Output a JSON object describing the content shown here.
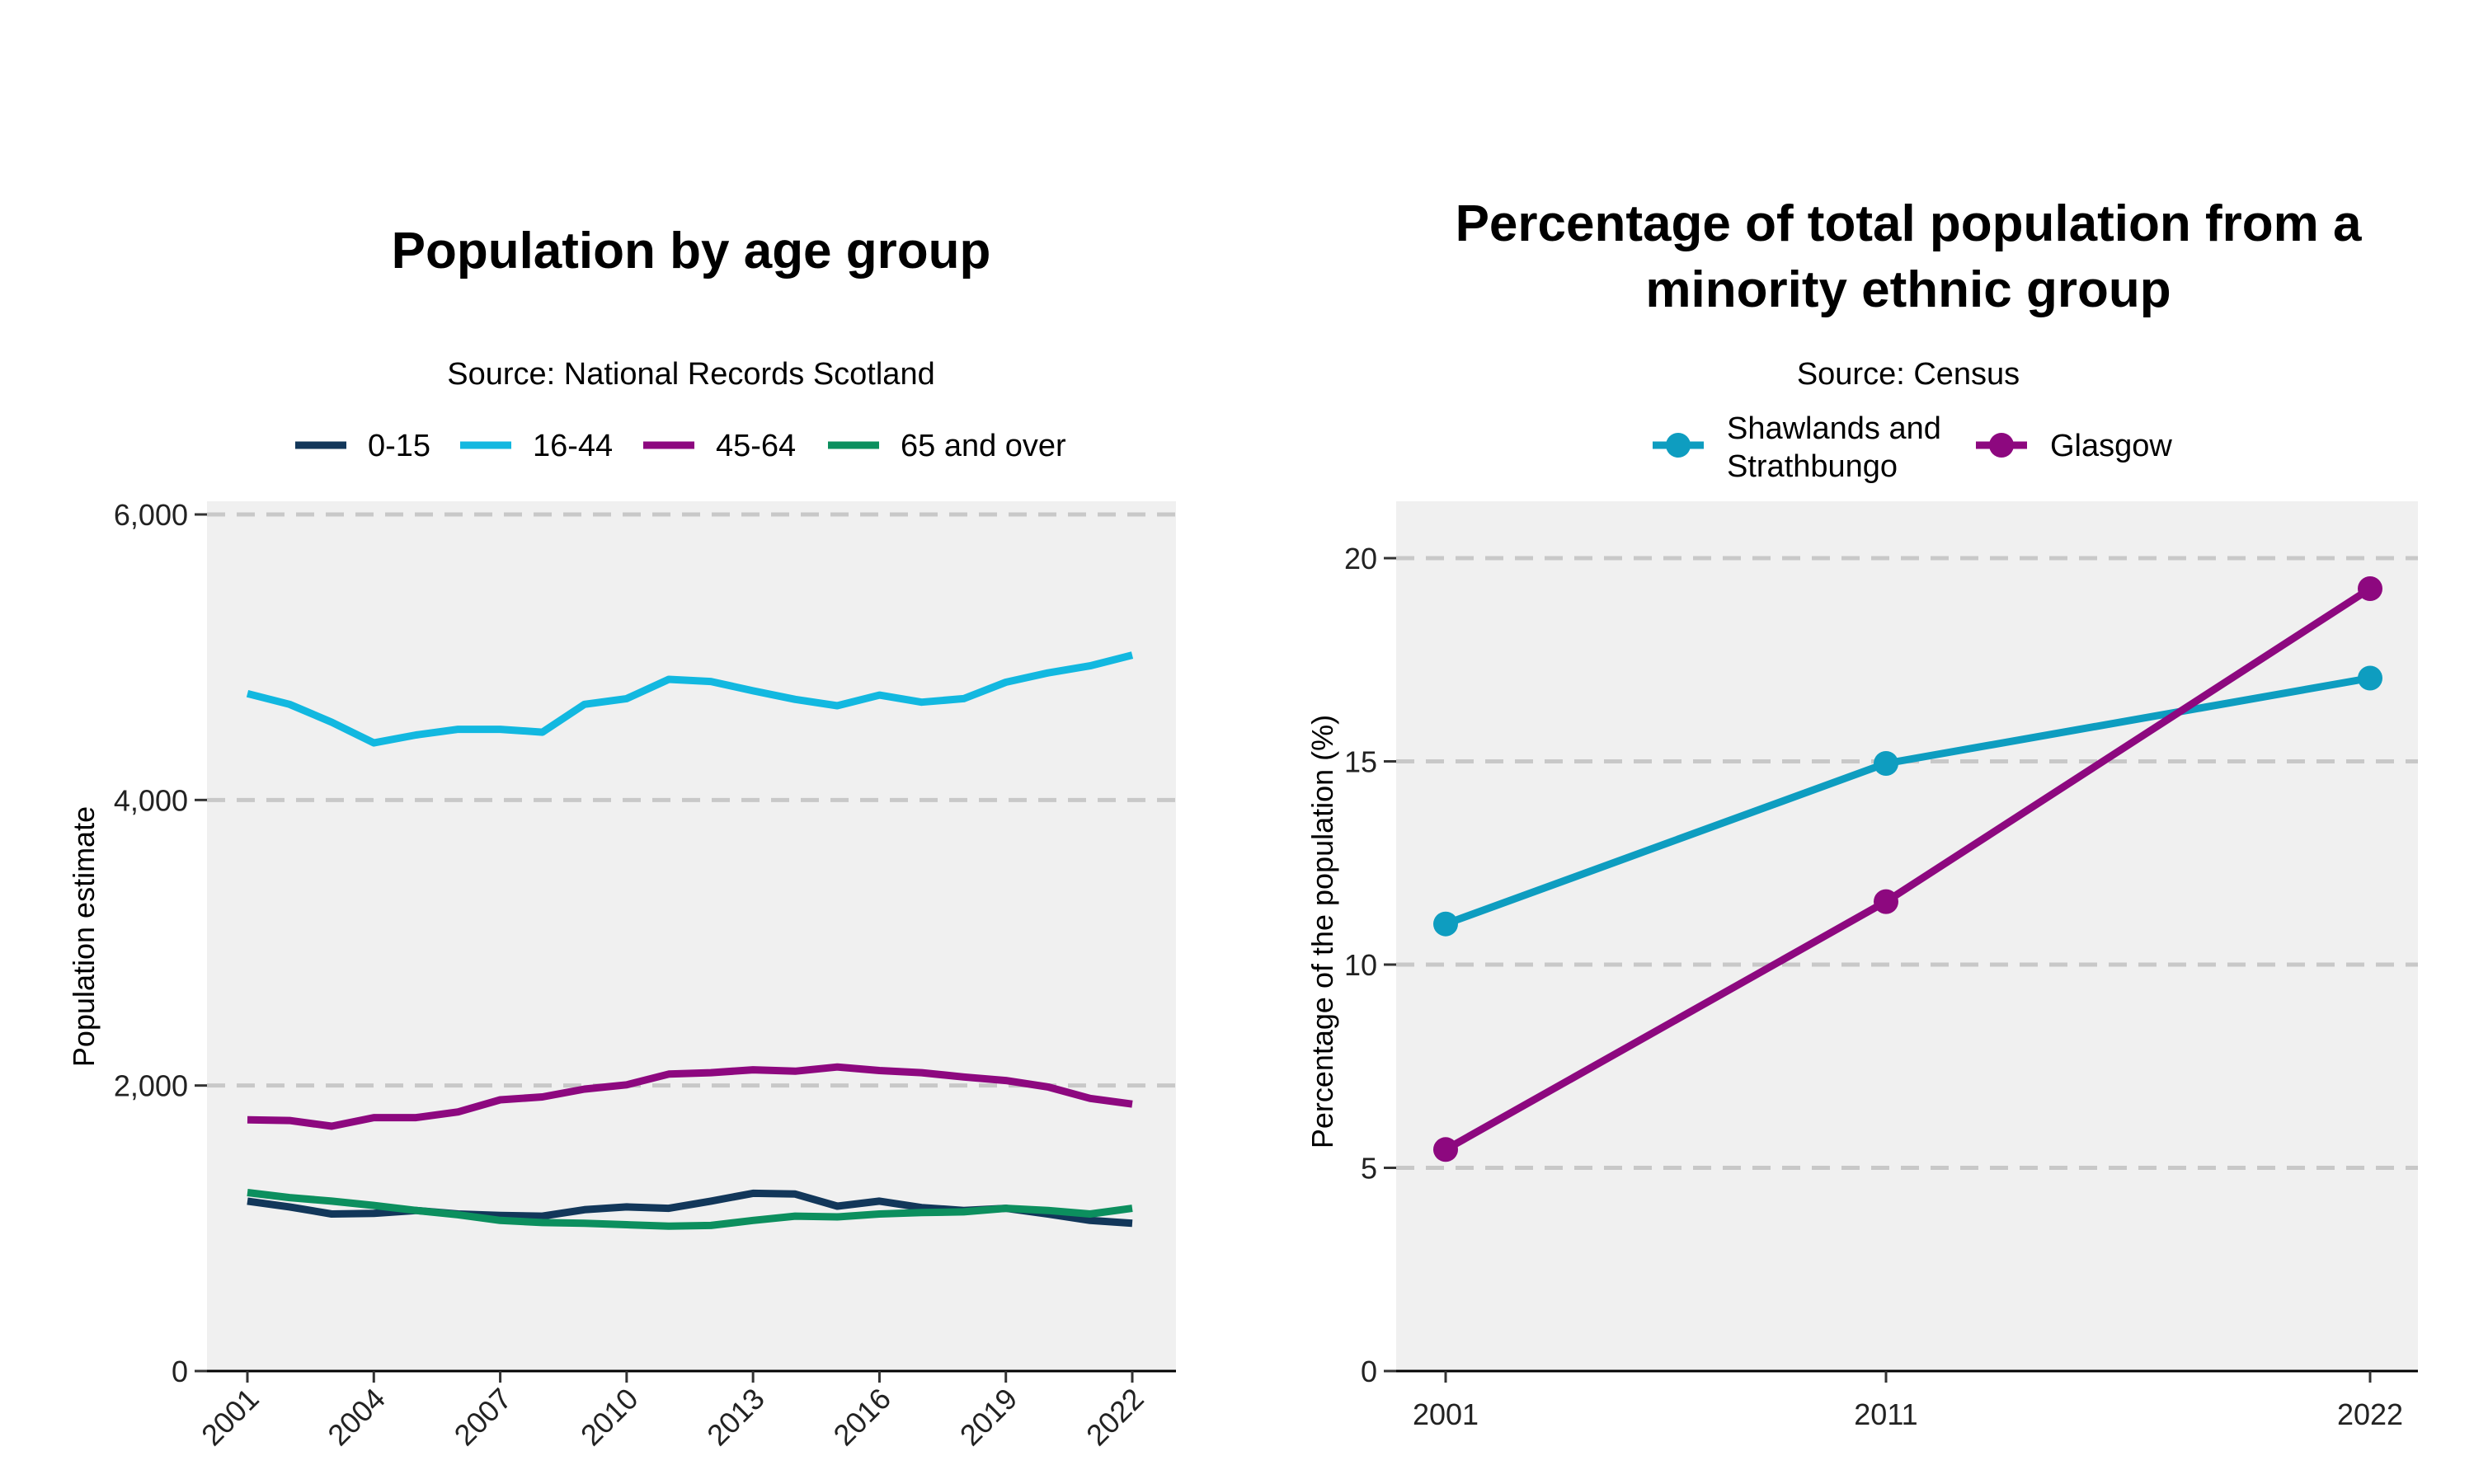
{
  "chart_data": [
    {
      "type": "line",
      "title": "Population by age group",
      "subtitle": "Source: National Records Scotland",
      "xlabel": "",
      "ylabel": "Population estimate",
      "ylim": [
        0,
        6000
      ],
      "yticks": [
        0,
        2000,
        4000,
        6000
      ],
      "ytick_labels": [
        "0",
        "2,000",
        "4,000",
        "6,000"
      ],
      "xlim": [
        2001,
        2022
      ],
      "xticks": [
        2001,
        2004,
        2007,
        2010,
        2013,
        2016,
        2019,
        2022
      ],
      "xtick_labels": [
        "2001",
        "2004",
        "2007",
        "2010",
        "2013",
        "2016",
        "2019",
        "2022"
      ],
      "grid": "horizontal dashed at major y ticks",
      "legend_position": "top",
      "x": [
        2001,
        2002,
        2003,
        2004,
        2005,
        2006,
        2007,
        2008,
        2009,
        2010,
        2011,
        2012,
        2013,
        2014,
        2015,
        2016,
        2017,
        2018,
        2019,
        2020,
        2021,
        2022
      ],
      "series": [
        {
          "name": "0-15",
          "color": "#12375a",
          "values": [
            1190,
            1150,
            1100,
            1105,
            1125,
            1100,
            1090,
            1085,
            1130,
            1150,
            1140,
            1190,
            1245,
            1240,
            1155,
            1190,
            1145,
            1125,
            1140,
            1100,
            1055,
            1035
          ]
        },
        {
          "name": "16-44",
          "color": "#12b8e0",
          "values": [
            4745,
            4670,
            4545,
            4400,
            4455,
            4495,
            4495,
            4475,
            4670,
            4710,
            4845,
            4830,
            4765,
            4705,
            4660,
            4735,
            4685,
            4710,
            4825,
            4890,
            4940,
            5015
          ]
        },
        {
          "name": "45-64",
          "color": "#8d087f",
          "values": [
            1760,
            1755,
            1715,
            1775,
            1775,
            1815,
            1900,
            1920,
            1975,
            2005,
            2080,
            2090,
            2110,
            2100,
            2130,
            2105,
            2090,
            2060,
            2035,
            1990,
            1910,
            1870
          ]
        },
        {
          "name": "65 and over",
          "color": "#0c8f5e",
          "values": [
            1250,
            1215,
            1190,
            1160,
            1125,
            1095,
            1055,
            1040,
            1035,
            1025,
            1015,
            1020,
            1055,
            1085,
            1080,
            1100,
            1110,
            1115,
            1140,
            1125,
            1100,
            1140
          ]
        }
      ]
    },
    {
      "type": "line",
      "title": "Percentage of total population from a minority ethnic group",
      "title_lines": [
        "Percentage of total population from a",
        "minority ethnic group"
      ],
      "subtitle": "Source: Census",
      "xlabel": "",
      "ylabel": "Percentage of the population (%)",
      "ylim": [
        0,
        21.4
      ],
      "yticks": [
        0,
        5,
        10,
        15,
        20
      ],
      "ytick_labels": [
        "0",
        "5",
        "10",
        "15",
        "20"
      ],
      "categories": [
        "2001",
        "2011",
        "2022"
      ],
      "grid": "horizontal dashed at major y ticks",
      "legend_position": "top",
      "markers": true,
      "series": [
        {
          "name": "Shawlands and Strathbungo",
          "name_lines": [
            "Shawlands and",
            "Strathbungo"
          ],
          "color": "#0e9dc0",
          "values": [
            11.0,
            14.95,
            17.05
          ]
        },
        {
          "name": "Glasgow",
          "name_lines": [
            "Glasgow"
          ],
          "color": "#8d087f",
          "values": [
            5.45,
            11.55,
            19.25
          ]
        }
      ]
    }
  ]
}
